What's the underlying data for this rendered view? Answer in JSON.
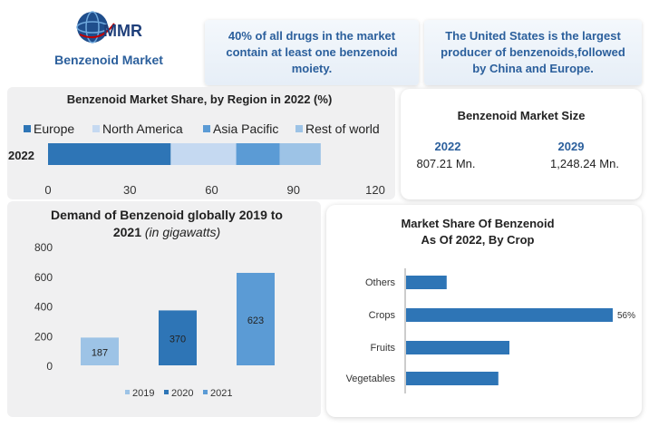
{
  "logo": {
    "text": "MMR"
  },
  "page_title": "Benzenoid Market",
  "facts": [
    "40% of all drugs in the market contain at least one benzenoid moiety.",
    "The United States is the largest producer of benzenoids,followed by China and Europe."
  ],
  "market_size": {
    "title": "Benzenoid Market Size",
    "years": [
      "2022",
      "2029"
    ],
    "values": [
      "807.21 Mn.",
      "1,248.24 Mn."
    ]
  },
  "colors": {
    "accent": "#2b5f9c",
    "bar_dark": "#2e75b6",
    "bar_mid": "#5b9bd5",
    "bar_light": "#9dc3e6",
    "bar_pale": "#c5d9f1"
  },
  "chart_data": [
    {
      "type": "bar",
      "orientation": "horizontal-stacked",
      "title": "Benzenoid Market Share, by Region in 2022 (%)",
      "categories": [
        "2022"
      ],
      "series": [
        {
          "name": "Europe",
          "values": [
            45
          ]
        },
        {
          "name": "North America",
          "values": [
            24
          ]
        },
        {
          "name": "Asia Pacific",
          "values": [
            16
          ]
        },
        {
          "name": "Rest of world",
          "values": [
            15
          ]
        }
      ],
      "xlim": [
        0,
        120
      ],
      "xticks": [
        "0",
        "30",
        "60",
        "90",
        "120"
      ],
      "legend": "top"
    },
    {
      "type": "bar",
      "title": "Demand of Benzenoid globally 2019 to 2021",
      "title_italic": "(in gigawatts)",
      "categories": [
        "2019",
        "2020",
        "2021"
      ],
      "values": [
        187,
        370,
        623
      ],
      "labels": [
        "187",
        "370",
        "623"
      ],
      "ylim": [
        0,
        800
      ],
      "yticks": [
        "0",
        "200",
        "400",
        "600",
        "800"
      ],
      "legend": [
        "2019",
        "2020",
        "2021"
      ],
      "legend_position": "bottom"
    },
    {
      "type": "bar",
      "orientation": "horizontal",
      "title": "Market Share Of Benzenoid As Of 2022, By Crop",
      "title_lines": [
        "Market Share Of Benzenoid",
        "As Of 2022, By Crop"
      ],
      "categories": [
        "Others",
        "Crops",
        "Fruits",
        "Vegetables"
      ],
      "values": [
        11,
        56,
        28,
        25
      ],
      "label_shown": "56%",
      "xlim": [
        0,
        56
      ]
    }
  ]
}
